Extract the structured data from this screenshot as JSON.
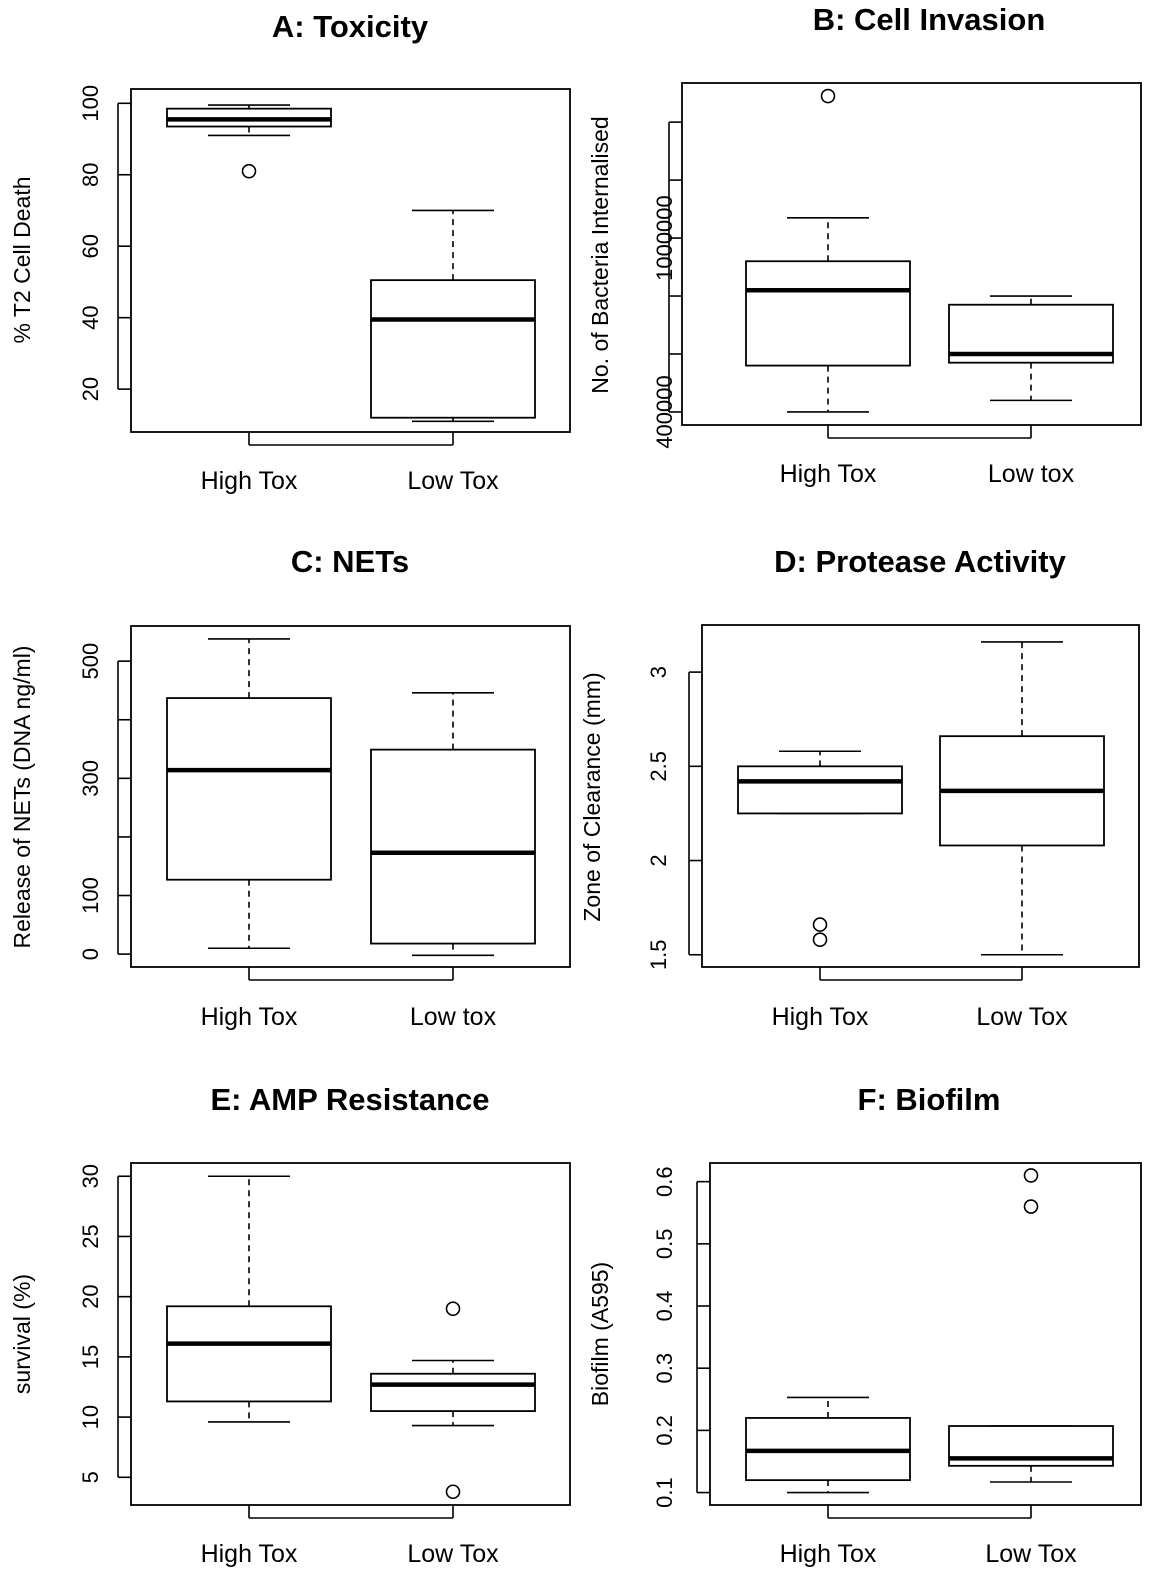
{
  "chart_data": [
    {
      "type": "boxplot",
      "title": "A: Toxicity",
      "ylabel": "% T2 Cell Death",
      "categories": [
        "High Tox",
        "Low Tox"
      ],
      "ylim": [
        8,
        104
      ],
      "yticks": [
        20,
        40,
        60,
        80,
        100
      ],
      "boxes": [
        {
          "whisker_low": 91,
          "q1": 93.5,
          "median": 95.5,
          "q3": 98.5,
          "whisker_high": 99.5,
          "outliers": [
            81
          ]
        },
        {
          "whisker_low": 11,
          "q1": 12,
          "median": 39.5,
          "q3": 50.5,
          "whisker_high": 70,
          "outliers": []
        }
      ]
    },
    {
      "type": "boxplot",
      "title": "B: Cell Invasion",
      "ylabel": "No. of Bacteria Internalised",
      "categories": [
        "High Tox",
        "Low tox"
      ],
      "ylim": [
        355000,
        1535000
      ],
      "yticks": [
        400000,
        1000000
      ],
      "minor_yticks": [
        400000,
        600000,
        800000,
        1000000,
        1200000,
        1400000
      ],
      "boxes": [
        {
          "whisker_low": 400000,
          "q1": 560000,
          "median": 820000,
          "q3": 920000,
          "whisker_high": 1070000,
          "outliers": [
            1490000
          ]
        },
        {
          "whisker_low": 440000,
          "q1": 570000,
          "median": 600000,
          "q3": 770000,
          "whisker_high": 800000,
          "outliers": []
        }
      ]
    },
    {
      "type": "boxplot",
      "title": "C: NETs",
      "ylabel": "Release of NETs (DNA ng/ml)",
      "categories": [
        "High Tox",
        "Low tox"
      ],
      "ylim": [
        -22,
        560
      ],
      "yticks": [
        0,
        100,
        300,
        500
      ],
      "minor_yticks": [
        0,
        100,
        200,
        300,
        400,
        500
      ],
      "boxes": [
        {
          "whisker_low": 10,
          "q1": 127,
          "median": 314,
          "q3": 437,
          "whisker_high": 538,
          "outliers": []
        },
        {
          "whisker_low": -2,
          "q1": 18,
          "median": 173,
          "q3": 349,
          "whisker_high": 446,
          "outliers": []
        }
      ]
    },
    {
      "type": "boxplot",
      "title": "D: Protease Activity",
      "ylabel": "Zone of Clearance (mm)",
      "categories": [
        "High Tox",
        "Low Tox"
      ],
      "ylim": [
        1.435,
        3.25
      ],
      "yticks": [
        1.5,
        2.0,
        2.5,
        3.0
      ],
      "boxes": [
        {
          "whisker_low": 2.25,
          "q1": 2.25,
          "median": 2.42,
          "q3": 2.5,
          "whisker_high": 2.58,
          "outliers": [
            1.58,
            1.66
          ]
        },
        {
          "whisker_low": 1.5,
          "q1": 2.08,
          "median": 2.37,
          "q3": 2.66,
          "whisker_high": 3.16,
          "outliers": []
        }
      ]
    },
    {
      "type": "boxplot",
      "title": "E: AMP Resistance",
      "ylabel": "survival (%)",
      "categories": [
        "High Tox",
        "Low Tox"
      ],
      "ylim": [
        2.7,
        31.1
      ],
      "yticks": [
        5,
        10,
        15,
        20,
        25,
        30
      ],
      "boxes": [
        {
          "whisker_low": 9.6,
          "q1": 11.3,
          "median": 16.1,
          "q3": 19.2,
          "whisker_high": 30,
          "outliers": []
        },
        {
          "whisker_low": 9.3,
          "q1": 10.5,
          "median": 12.7,
          "q3": 13.6,
          "whisker_high": 14.7,
          "outliers": [
            19,
            3.8
          ]
        }
      ]
    },
    {
      "type": "boxplot",
      "title": "F: Biofilm",
      "ylabel": "Biofilm (A595)",
      "categories": [
        "High Tox",
        "Low Tox"
      ],
      "ylim": [
        0.08,
        0.63
      ],
      "yticks": [
        0.1,
        0.2,
        0.3,
        0.4,
        0.5,
        0.6
      ],
      "boxes": [
        {
          "whisker_low": 0.1,
          "q1": 0.12,
          "median": 0.167,
          "q3": 0.22,
          "whisker_high": 0.253,
          "outliers": []
        },
        {
          "whisker_low": 0.117,
          "q1": 0.143,
          "median": 0.155,
          "q3": 0.207,
          "whisker_high": 0.207,
          "outliers": [
            0.61,
            0.56
          ]
        }
      ]
    }
  ]
}
